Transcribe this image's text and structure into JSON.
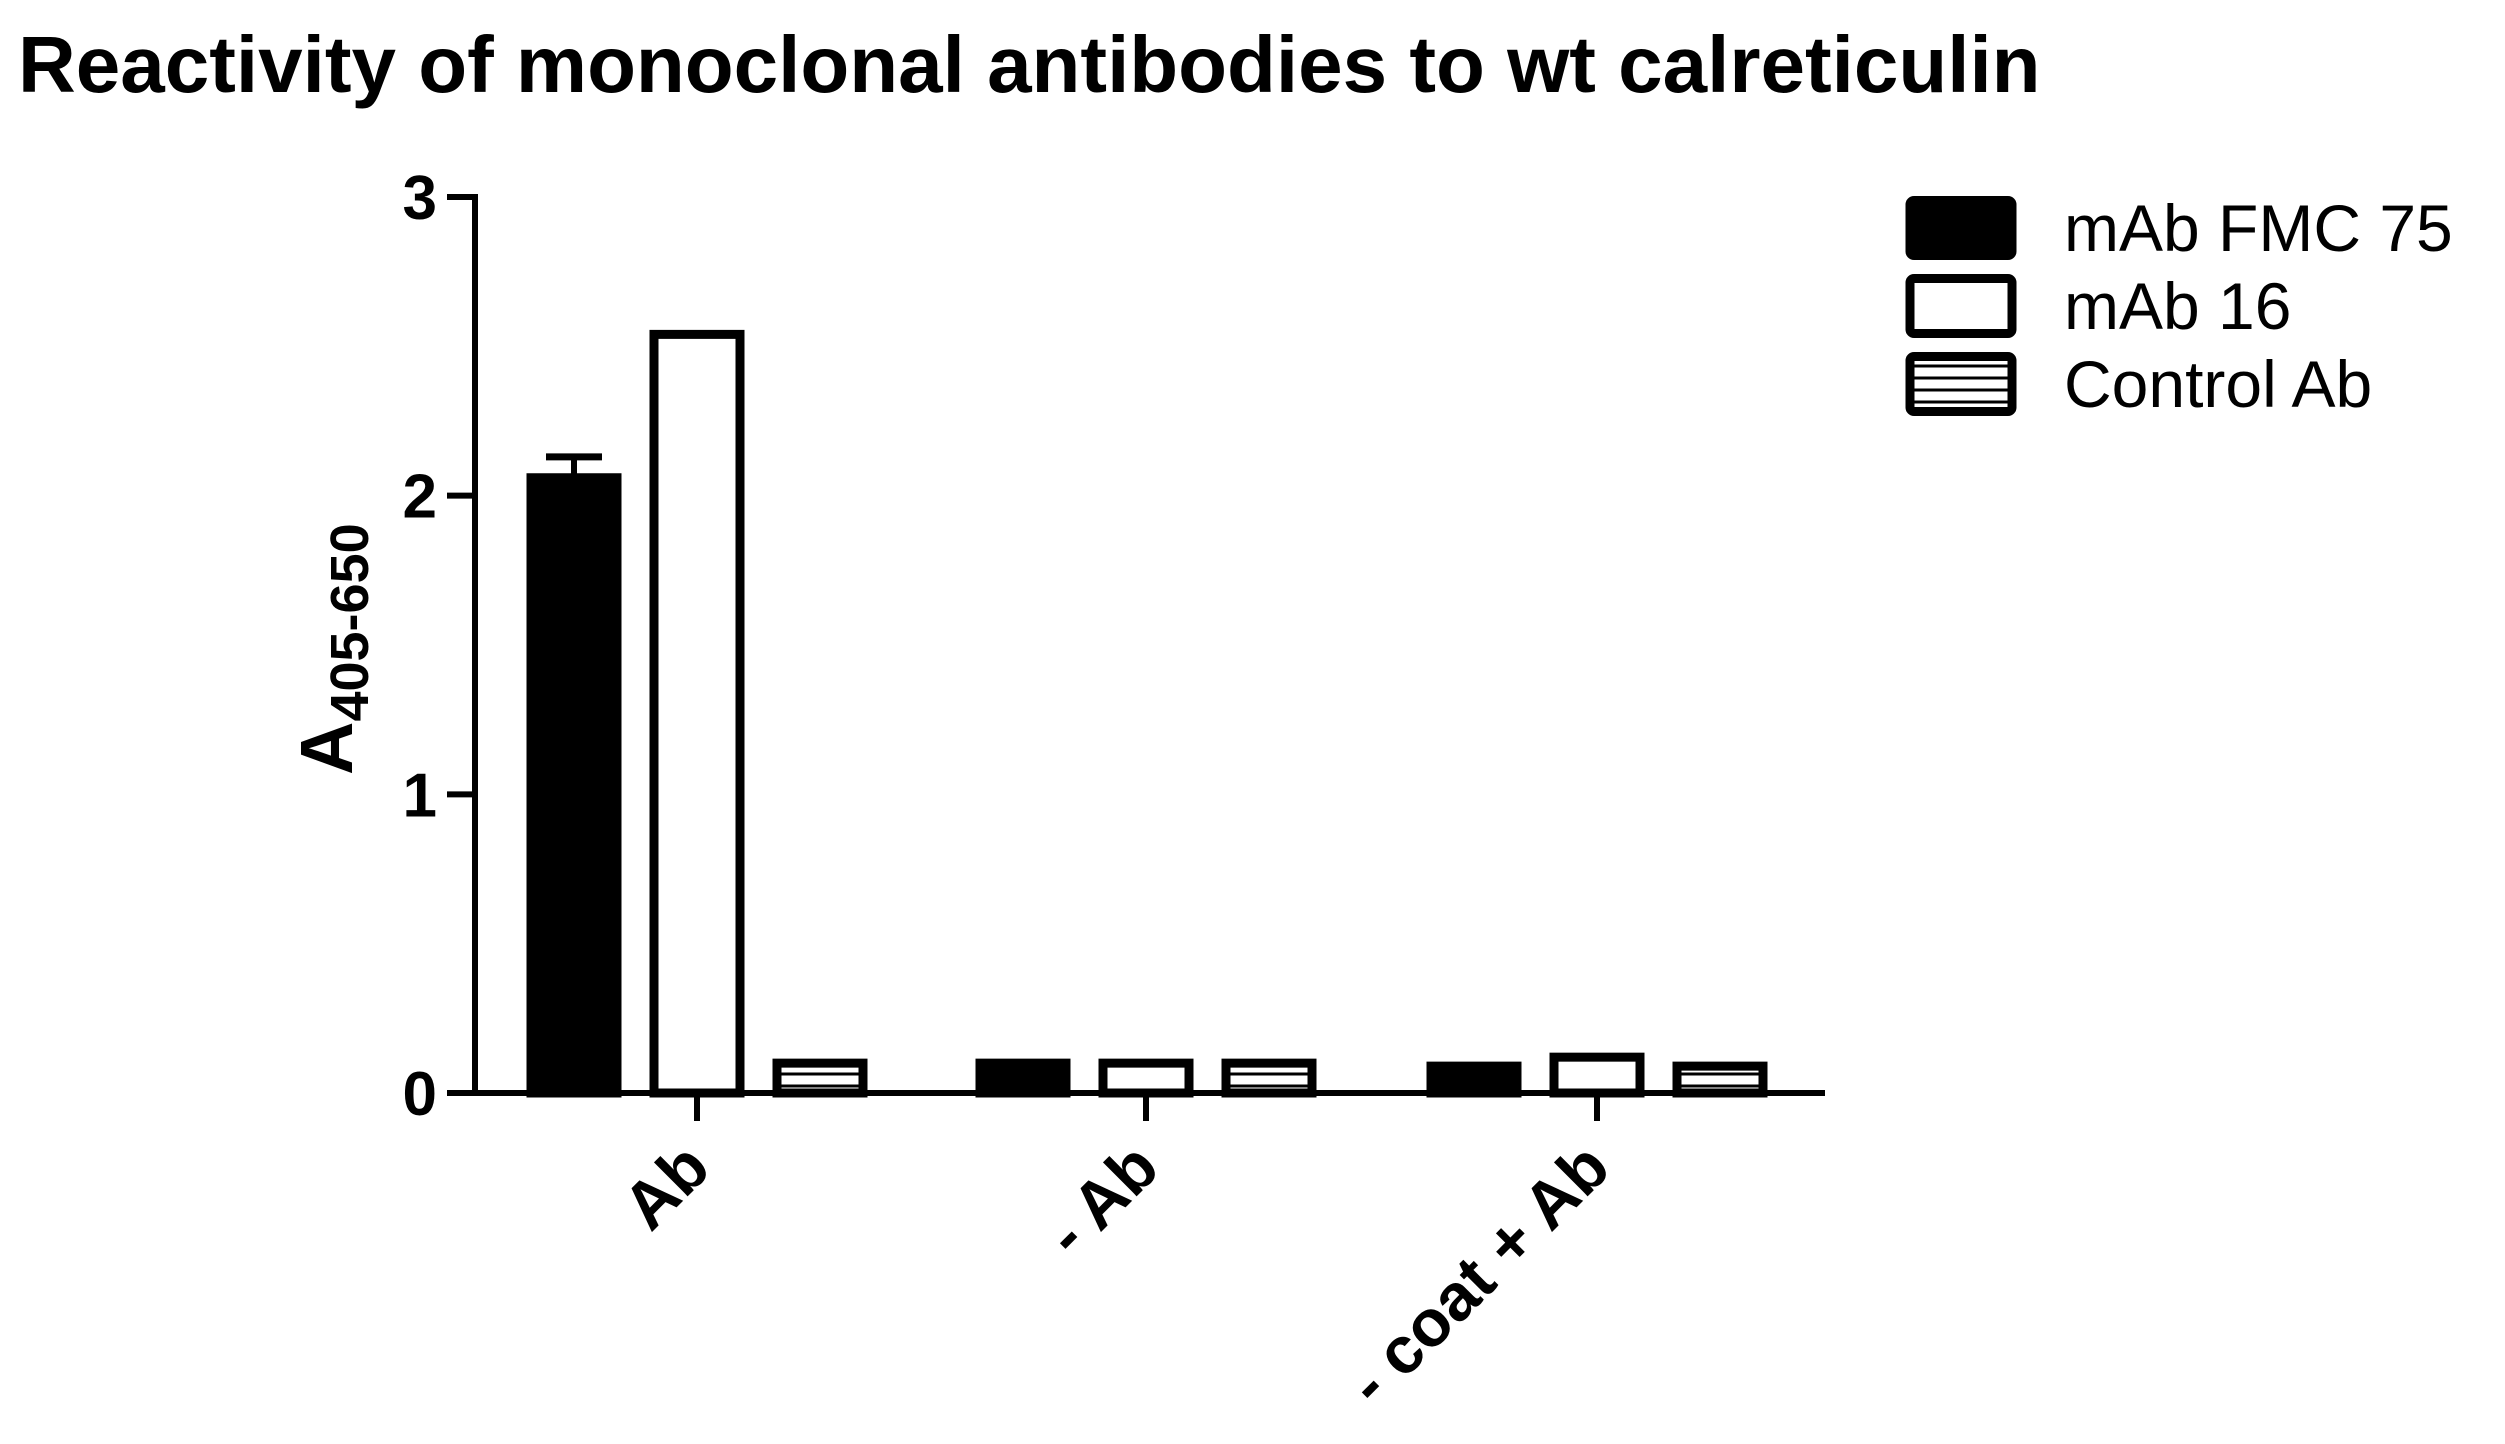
{
  "chart_data": {
    "type": "bar",
    "title": "Reactivity of monoclonal antibodies to wt calreticulin",
    "ylabel": "A",
    "ylabel_subscript": "405-650",
    "xlabel": "",
    "ylim": [
      0,
      3
    ],
    "yticks": [
      "0",
      "1",
      "2",
      "3"
    ],
    "categories": [
      "Ab",
      "- Ab",
      "- coat + Ab"
    ],
    "series": [
      {
        "name": "mAb FMC 75",
        "values": [
          2.06,
          0.1,
          0.09
        ],
        "errors": [
          0.07,
          0.0,
          0.0
        ],
        "fill": "#000000",
        "pattern": "solid"
      },
      {
        "name": "mAb 16",
        "values": [
          2.54,
          0.1,
          0.12
        ],
        "errors": [
          0.0,
          0.0,
          0.0
        ],
        "fill": "#ffffff",
        "pattern": "open"
      },
      {
        "name": "Control Ab",
        "values": [
          0.1,
          0.1,
          0.09
        ],
        "errors": [
          0.0,
          0.0,
          0.0
        ],
        "fill": "#ffffff",
        "pattern": "horizontal-stripes"
      }
    ],
    "legend_position": "top-right",
    "grid": false
  }
}
